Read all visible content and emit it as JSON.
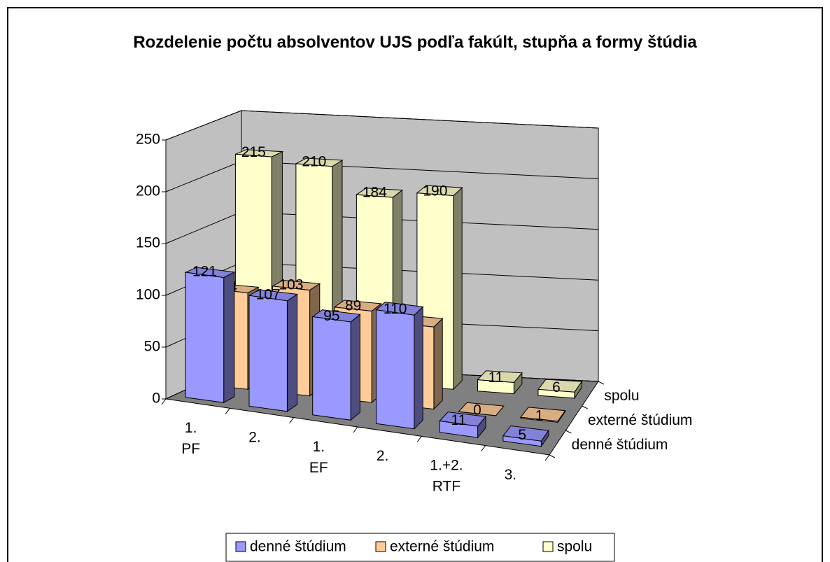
{
  "chart_data": {
    "type": "bar3d",
    "title": "Rozdelenie počtu absolventov UJS podľa fakúlt, stupňa a formy štúdia",
    "categories": [
      [
        "1.",
        "PF"
      ],
      [
        "2.",
        null
      ],
      [
        "1.",
        "EF"
      ],
      [
        "2.",
        null
      ],
      [
        "1.+2.",
        "RTF"
      ],
      [
        "3.",
        null
      ]
    ],
    "series": [
      {
        "name": "denné štúdium",
        "color": "#9999ff",
        "values": [
          121,
          107,
          95,
          110,
          11,
          5
        ]
      },
      {
        "name": "externé štúdium",
        "color": "#ffcc99",
        "values": [
          94,
          103,
          89,
          80,
          0,
          1
        ]
      },
      {
        "name": "spolu",
        "color": "#ffffcc",
        "values": [
          215,
          210,
          184,
          190,
          11,
          6
        ]
      }
    ],
    "ylim": [
      0,
      250
    ],
    "yticks": [
      0,
      50,
      100,
      150,
      200,
      250
    ],
    "grid": true,
    "legend": "bottom"
  }
}
